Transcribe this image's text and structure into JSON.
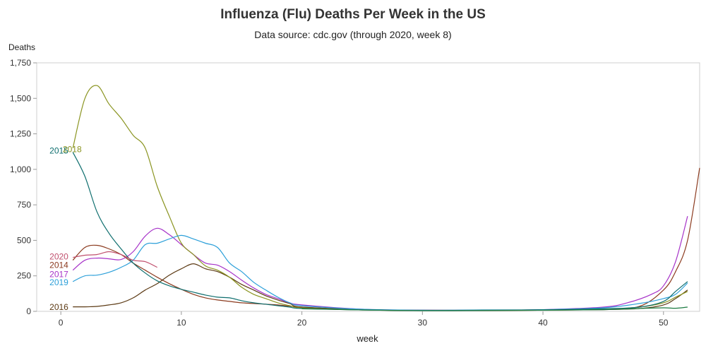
{
  "chart_data": {
    "type": "line",
    "title": "Influenza (Flu) Deaths Per Week in the US",
    "subtitle": "Data source: cdc.gov (through 2020, week 8)",
    "xlabel": "week",
    "ylabel": "Deaths",
    "xlim": [
      -2,
      53
    ],
    "ylim": [
      0,
      1750
    ],
    "xticks": [
      0,
      10,
      20,
      30,
      40,
      50
    ],
    "yticks": [
      0,
      250,
      500,
      750,
      1000,
      1250,
      1500,
      1750
    ],
    "ytick_labels": [
      "0",
      "250",
      "500",
      "750",
      "1,000",
      "1,250",
      "1,500",
      "1,750"
    ],
    "grid": false,
    "series": [
      {
        "name": "2014",
        "color": "#8b3a1e",
        "x": [
          1,
          2,
          3,
          4,
          5,
          6,
          7,
          8,
          9,
          10,
          11,
          12,
          13,
          14,
          15,
          16,
          18,
          20,
          25,
          30,
          35,
          40,
          45,
          48,
          50,
          51,
          52,
          53
        ],
        "y": [
          360,
          450,
          465,
          440,
          400,
          340,
          290,
          240,
          195,
          155,
          120,
          95,
          80,
          70,
          60,
          55,
          45,
          30,
          12,
          8,
          8,
          10,
          15,
          35,
          150,
          280,
          500,
          1010
        ]
      },
      {
        "name": "2016",
        "color": "#5c3a14",
        "x": [
          1,
          2,
          3,
          4,
          5,
          6,
          7,
          8,
          9,
          10,
          11,
          12,
          13,
          14,
          15,
          16,
          17,
          18,
          19,
          20,
          25,
          30,
          35,
          40,
          45,
          48,
          50,
          51,
          52
        ],
        "y": [
          32,
          32,
          35,
          45,
          60,
          95,
          150,
          195,
          255,
          300,
          335,
          300,
          280,
          240,
          190,
          150,
          110,
          80,
          55,
          30,
          12,
          6,
          6,
          8,
          12,
          20,
          45,
          90,
          150
        ]
      },
      {
        "name": "2017",
        "color": "#a632c8",
        "x": [
          1,
          2,
          3,
          4,
          5,
          6,
          7,
          8,
          9,
          10,
          11,
          12,
          13,
          14,
          15,
          16,
          17,
          18,
          19,
          20,
          25,
          30,
          35,
          40,
          45,
          47,
          49,
          50,
          51,
          52
        ],
        "y": [
          290,
          360,
          375,
          370,
          365,
          420,
          530,
          585,
          540,
          470,
          400,
          340,
          325,
          280,
          220,
          165,
          120,
          90,
          60,
          45,
          15,
          8,
          8,
          12,
          30,
          60,
          120,
          180,
          350,
          670
        ]
      },
      {
        "name": "2018",
        "color": "#8a9420",
        "x": [
          1,
          2,
          3,
          4,
          5,
          6,
          7,
          8,
          9,
          10,
          11,
          12,
          13,
          14,
          15,
          16,
          17,
          18,
          19,
          20,
          25,
          30,
          35,
          40,
          45,
          48,
          50,
          51,
          52
        ],
        "y": [
          1150,
          1500,
          1590,
          1460,
          1360,
          1240,
          1150,
          880,
          670,
          480,
          400,
          320,
          290,
          240,
          170,
          120,
          90,
          60,
          40,
          25,
          10,
          6,
          6,
          8,
          15,
          30,
          60,
          100,
          140
        ]
      },
      {
        "name": "2019",
        "color": "#2b9fd9",
        "x": [
          1,
          2,
          3,
          4,
          5,
          6,
          7,
          8,
          9,
          10,
          11,
          12,
          13,
          14,
          15,
          16,
          17,
          18,
          19,
          20,
          25,
          30,
          35,
          40,
          45,
          48,
          50,
          51,
          52
        ],
        "y": [
          210,
          250,
          255,
          275,
          310,
          360,
          470,
          480,
          510,
          535,
          510,
          480,
          450,
          340,
          280,
          205,
          150,
          100,
          60,
          40,
          15,
          8,
          10,
          12,
          25,
          55,
          90,
          120,
          200
        ]
      },
      {
        "name": "2015",
        "color": "#0e6e6e",
        "x": [
          1,
          2,
          3,
          4,
          5,
          6,
          7,
          8,
          9,
          10,
          11,
          12,
          13,
          14,
          15,
          16,
          17,
          18,
          19,
          20,
          25,
          30,
          35,
          40,
          45,
          48,
          50,
          51,
          52
        ],
        "y": [
          1120,
          950,
          700,
          550,
          440,
          340,
          270,
          215,
          180,
          155,
          135,
          115,
          100,
          95,
          75,
          60,
          50,
          40,
          30,
          20,
          10,
          6,
          8,
          10,
          18,
          30,
          70,
          140,
          210
        ]
      },
      {
        "name": "2020",
        "color": "#c0506e",
        "x": [
          1,
          2,
          3,
          4,
          5,
          6,
          7,
          8
        ],
        "y": [
          380,
          395,
          400,
          420,
          400,
          360,
          350,
          310
        ]
      },
      {
        "name": "",
        "color": "#1a7a40",
        "x": [
          20,
          25,
          30,
          35,
          40,
          45,
          48,
          50,
          51,
          52
        ],
        "y": [
          18,
          10,
          5,
          6,
          8,
          12,
          20,
          25,
          22,
          30
        ]
      }
    ],
    "labels": [
      {
        "text": "2015",
        "color": "#0e6e6e",
        "x": 0,
        "y": 1130
      },
      {
        "text": "2018",
        "color": "#8a9420",
        "x": 1.1,
        "y": 1140
      },
      {
        "text": "2020",
        "color": "#c0506e",
        "x": 0,
        "y": 385
      },
      {
        "text": "2014",
        "color": "#8b3a1e",
        "x": 0,
        "y": 325
      },
      {
        "text": "2017",
        "color": "#a632c8",
        "x": 0,
        "y": 260
      },
      {
        "text": "2019",
        "color": "#2b9fd9",
        "x": 0,
        "y": 205
      },
      {
        "text": "2016",
        "color": "#5c3a14",
        "x": 0,
        "y": 30
      }
    ]
  }
}
